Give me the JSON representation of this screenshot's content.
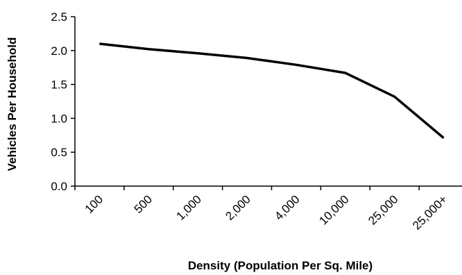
{
  "chart_data": {
    "type": "line",
    "title": "",
    "xlabel": "Density (Population Per Sq. Mile)",
    "ylabel": "Vehicles Per Household",
    "categories": [
      "100",
      "500",
      "1,000",
      "2,000",
      "4,000",
      "10,000",
      "25,000",
      "25,000+"
    ],
    "series": [
      {
        "values": [
          2.1,
          2.02,
          1.96,
          1.89,
          1.79,
          1.67,
          1.32,
          0.71
        ]
      }
    ],
    "ylim": [
      0.0,
      2.5
    ],
    "yticks": [
      "0.0",
      "0.5",
      "1.0",
      "1.5",
      "2.0",
      "2.5"
    ],
    "grid": false,
    "legend": "none",
    "line_color": "#000000"
  }
}
